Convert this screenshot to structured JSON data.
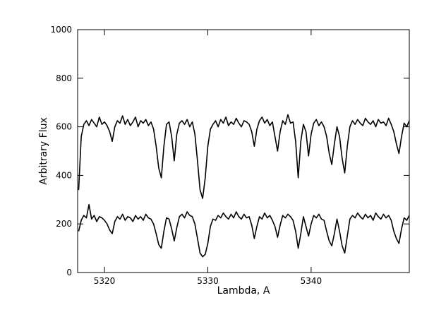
{
  "chart_data": {
    "type": "line",
    "xlabel": "Lambda, A",
    "ylabel": "Arbitrary Flux",
    "xlim": [
      5317.4,
      5349.5
    ],
    "ylim": [
      0,
      1000
    ],
    "xticks": [
      5320,
      5330,
      5340
    ],
    "yticks": [
      0,
      200,
      400,
      600,
      800,
      1000
    ],
    "x": [
      5317.5,
      5317.75,
      5318,
      5318.25,
      5318.5,
      5318.75,
      5319,
      5319.25,
      5319.5,
      5319.75,
      5320,
      5320.25,
      5320.5,
      5320.75,
      5321,
      5321.25,
      5321.5,
      5321.75,
      5322,
      5322.25,
      5322.5,
      5322.75,
      5323,
      5323.25,
      5323.5,
      5323.75,
      5324,
      5324.25,
      5324.5,
      5324.75,
      5325,
      5325.25,
      5325.5,
      5325.75,
      5326,
      5326.25,
      5326.5,
      5326.75,
      5327,
      5327.25,
      5327.5,
      5327.75,
      5328,
      5328.25,
      5328.5,
      5328.75,
      5329,
      5329.25,
      5329.5,
      5329.75,
      5330,
      5330.25,
      5330.5,
      5330.75,
      5331,
      5331.25,
      5331.5,
      5331.75,
      5332,
      5332.25,
      5332.5,
      5332.75,
      5333,
      5333.25,
      5333.5,
      5333.75,
      5334,
      5334.25,
      5334.5,
      5334.75,
      5335,
      5335.25,
      5335.5,
      5335.75,
      5336,
      5336.25,
      5336.5,
      5336.75,
      5337,
      5337.25,
      5337.5,
      5337.75,
      5338,
      5338.25,
      5338.5,
      5338.75,
      5339,
      5339.25,
      5339.5,
      5339.75,
      5340,
      5340.25,
      5340.5,
      5340.75,
      5341,
      5341.25,
      5341.5,
      5341.75,
      5342,
      5342.25,
      5342.5,
      5342.75,
      5343,
      5343.25,
      5343.5,
      5343.75,
      5344,
      5344.25,
      5344.5,
      5344.75,
      5345,
      5345.25,
      5345.5,
      5345.75,
      5346,
      5346.25,
      5346.5,
      5346.75,
      5347,
      5347.25,
      5347.5,
      5347.75,
      5348,
      5348.25,
      5348.5,
      5348.75,
      5349,
      5349.25,
      5349.5
    ],
    "series": [
      {
        "color": "#000000",
        "values": [
          340,
          560,
          610,
          625,
          605,
          630,
          615,
          600,
          640,
          610,
          620,
          605,
          580,
          540,
          600,
          625,
          615,
          645,
          610,
          630,
          605,
          620,
          640,
          600,
          625,
          615,
          630,
          605,
          620,
          590,
          520,
          430,
          390,
          520,
          610,
          620,
          560,
          460,
          570,
          615,
          625,
          610,
          630,
          600,
          620,
          570,
          460,
          340,
          305,
          390,
          520,
          590,
          610,
          625,
          600,
          630,
          615,
          640,
          605,
          620,
          610,
          635,
          615,
          600,
          625,
          620,
          610,
          580,
          520,
          590,
          625,
          640,
          615,
          630,
          605,
          620,
          560,
          500,
          580,
          625,
          610,
          650,
          615,
          620,
          540,
          390,
          540,
          610,
          580,
          480,
          570,
          615,
          630,
          605,
          620,
          600,
          560,
          490,
          445,
          530,
          600,
          560,
          470,
          410,
          520,
          600,
          625,
          610,
          630,
          615,
          605,
          635,
          620,
          610,
          625,
          600,
          630,
          615,
          620,
          605,
          635,
          610,
          580,
          530,
          490,
          560,
          615,
          600,
          625
        ]
      },
      {
        "color": "#000000",
        "values": [
          170,
          215,
          235,
          225,
          280,
          220,
          235,
          210,
          230,
          225,
          215,
          200,
          175,
          160,
          210,
          230,
          220,
          240,
          215,
          230,
          225,
          210,
          235,
          220,
          230,
          215,
          240,
          225,
          220,
          200,
          160,
          115,
          100,
          170,
          225,
          220,
          180,
          130,
          185,
          230,
          240,
          225,
          250,
          235,
          230,
          200,
          140,
          80,
          65,
          75,
          120,
          190,
          220,
          215,
          235,
          225,
          245,
          230,
          220,
          240,
          225,
          250,
          230,
          220,
          240,
          225,
          230,
          195,
          140,
          190,
          230,
          220,
          245,
          225,
          235,
          215,
          190,
          145,
          195,
          235,
          225,
          240,
          230,
          215,
          170,
          100,
          160,
          230,
          190,
          150,
          200,
          235,
          225,
          240,
          220,
          215,
          170,
          130,
          110,
          160,
          220,
          170,
          110,
          80,
          150,
          220,
          235,
          225,
          245,
          230,
          220,
          240,
          225,
          235,
          215,
          245,
          230,
          220,
          240,
          225,
          235,
          215,
          170,
          140,
          120,
          180,
          225,
          215,
          235
        ]
      }
    ]
  }
}
